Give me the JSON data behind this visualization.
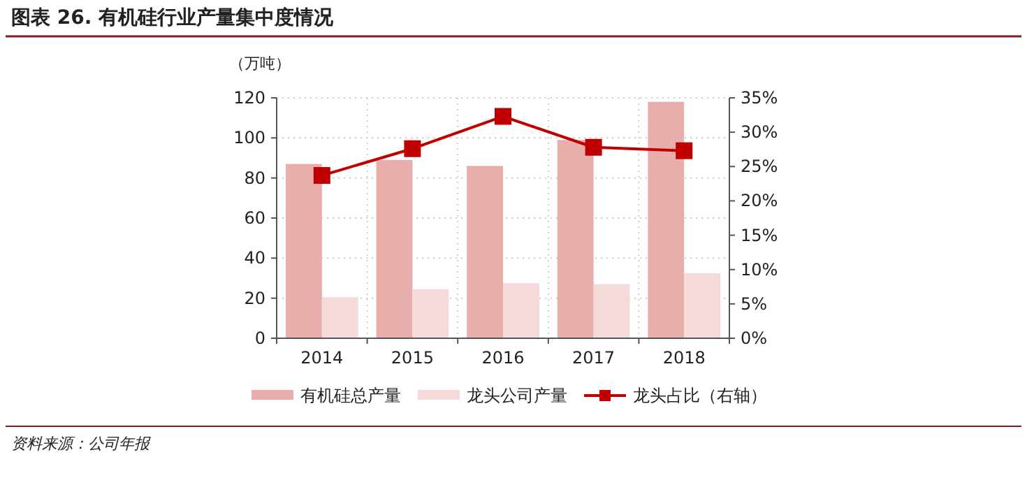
{
  "chart_data": {
    "type": "bar",
    "title": "图表 26. 有机硅行业产量集中度情况",
    "ylabel": "（万吨）",
    "categories": [
      "2014",
      "2015",
      "2016",
      "2017",
      "2018"
    ],
    "series": [
      {
        "name": "有机硅总产量",
        "color": "#e8aeac",
        "values": [
          87,
          89,
          86,
          99,
          118
        ]
      },
      {
        "name": "龙头公司产量",
        "color": "#f6d9d9",
        "values": [
          20.5,
          24.5,
          27.5,
          27,
          32.5
        ]
      },
      {
        "name": "龙头占比（右轴）",
        "type": "line",
        "axis": "y2",
        "color": "#c00000",
        "marker": "square",
        "values": [
          23.7,
          27.6,
          32.3,
          27.8,
          27.3
        ]
      }
    ],
    "ylim": [
      0,
      120
    ],
    "yticks": [
      0,
      20,
      40,
      60,
      80,
      100,
      120
    ],
    "y2lim": [
      0,
      35
    ],
    "y2ticks": [
      {
        "value": 0,
        "label": "0%"
      },
      {
        "value": 5,
        "label": "5%"
      },
      {
        "value": 10,
        "label": "10%"
      },
      {
        "value": 15,
        "label": "15%"
      },
      {
        "value": 20,
        "label": "20%"
      },
      {
        "value": 25,
        "label": "25%"
      },
      {
        "value": 30,
        "label": "30%"
      },
      {
        "value": 35,
        "label": "35%"
      }
    ],
    "grid": true,
    "legend": "bottom",
    "annotations": [
      "资料来源：公司年报"
    ]
  }
}
